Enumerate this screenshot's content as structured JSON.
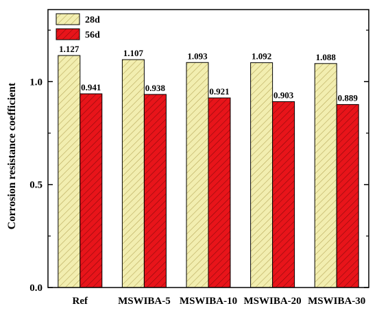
{
  "chart_data": {
    "type": "bar",
    "categories": [
      "Ref",
      "MSWIBA-5",
      "MSWIBA-10",
      "MSWIBA-20",
      "MSWIBA-30"
    ],
    "series": [
      {
        "name": "28d",
        "values": [
          1.127,
          1.107,
          1.093,
          1.092,
          1.088
        ],
        "value_labels": [
          "1.127",
          "1.107",
          "1.093",
          "1.092",
          "1.088"
        ],
        "color": "#f2eeb0",
        "hatch_color": "#b8a85a"
      },
      {
        "name": "56d",
        "values": [
          0.941,
          0.938,
          0.921,
          0.903,
          0.889
        ],
        "value_labels": [
          "0.941",
          "0.938",
          "0.921",
          "0.903",
          "0.889"
        ],
        "color": "#e8141a",
        "hatch_color": "#8a0a0a"
      }
    ],
    "title": "",
    "xlabel": "",
    "ylabel": "Corrosion resistance coefficient",
    "ylim": [
      0,
      1.35
    ],
    "yticks": [
      0.0,
      0.5,
      1.0
    ],
    "ytick_labels": [
      "0.0",
      "0.5",
      "1.0"
    ],
    "grid": false,
    "legend_position": "top-left",
    "bar_pattern": "diagonal hatch"
  }
}
